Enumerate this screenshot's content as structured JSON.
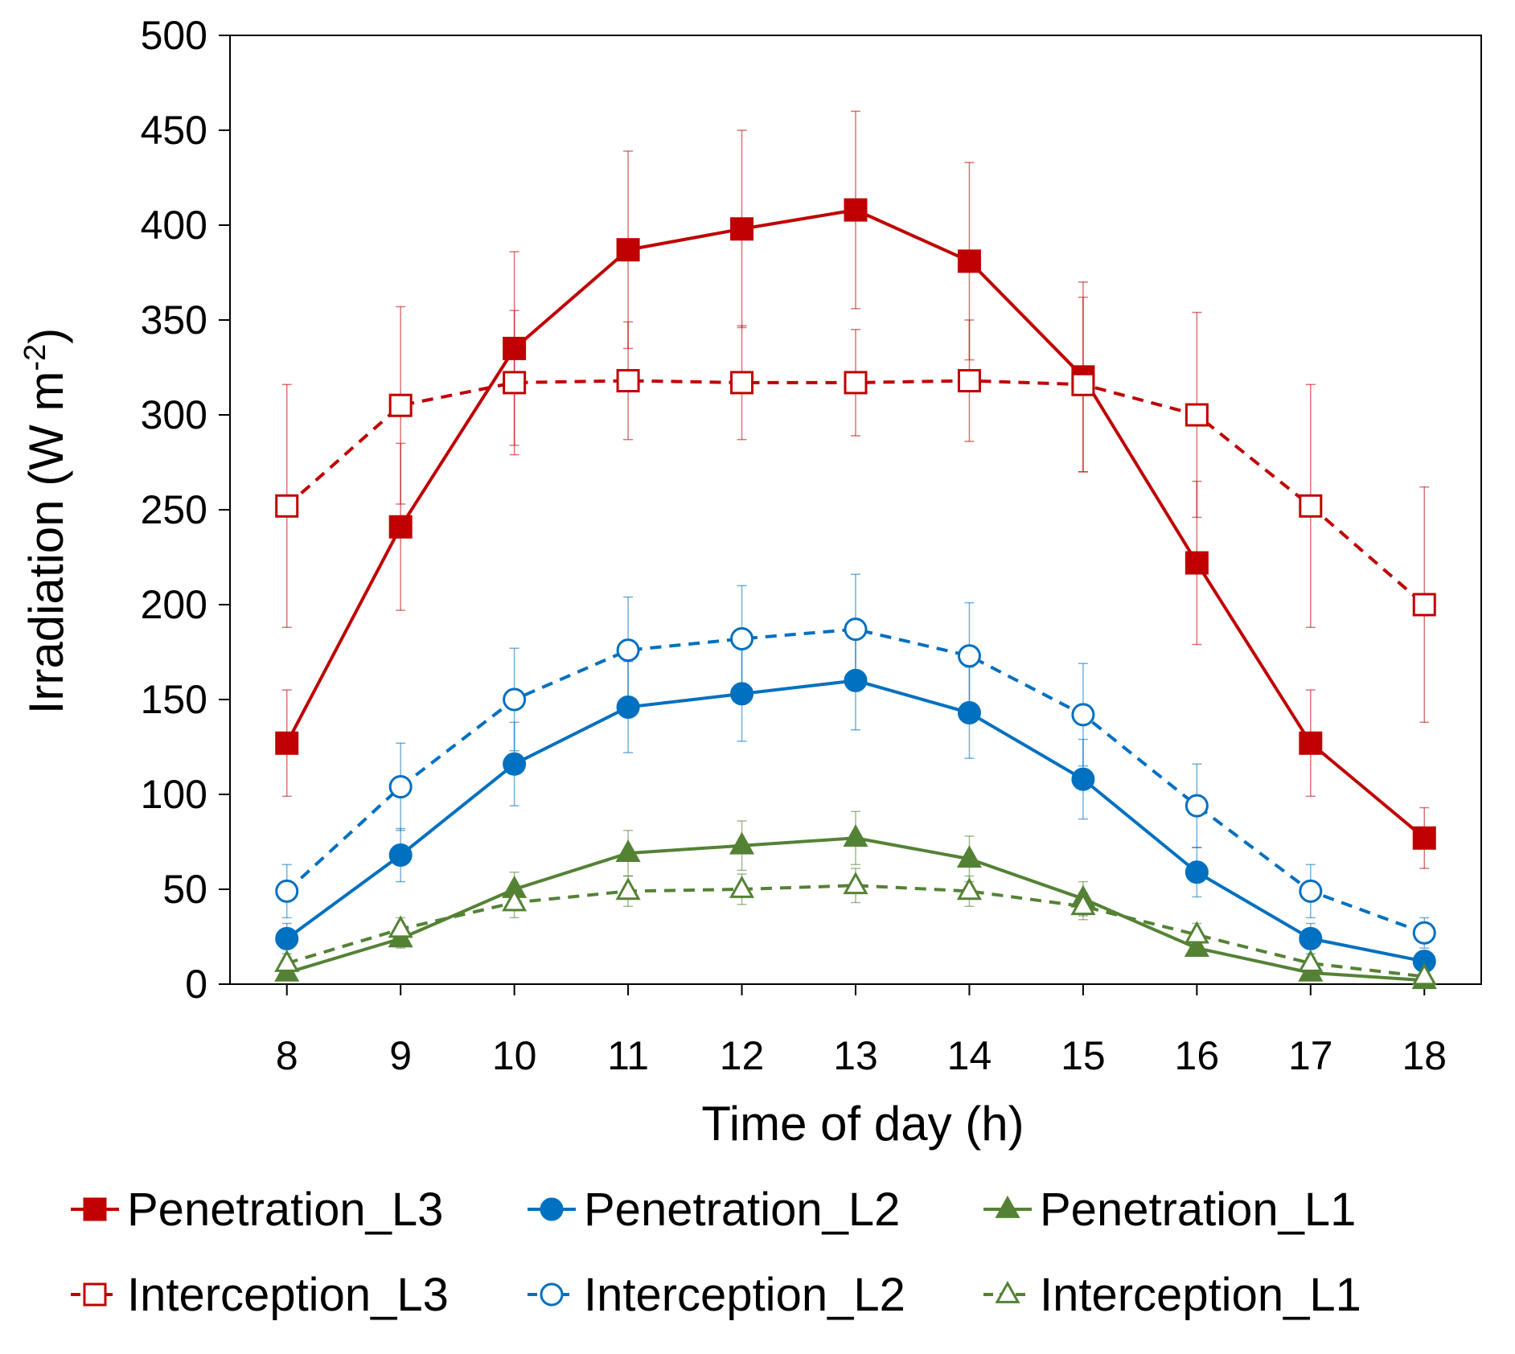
{
  "chart_data": {
    "type": "line",
    "title": "",
    "xlabel": "Time of day (h)",
    "ylabel_main": "Irradiation (W m",
    "ylabel_sup": "-2",
    "ylabel_close": ")",
    "x": [
      8,
      9,
      10,
      11,
      12,
      13,
      14,
      15,
      16,
      17,
      18
    ],
    "xlim": [
      7.5,
      18.5
    ],
    "ylim": [
      0,
      500
    ],
    "yticks": [
      0,
      50,
      100,
      150,
      200,
      250,
      300,
      350,
      400,
      450,
      500
    ],
    "grid": false,
    "legend_position": "bottom",
    "series": [
      {
        "name": "Penetration_L3",
        "color": "#c00000",
        "marker": "square",
        "filled": true,
        "dashed": false,
        "values": [
          127,
          241,
          335,
          387,
          398,
          408,
          381,
          320,
          222,
          127,
          77
        ],
        "errors": [
          28,
          44,
          51,
          52,
          52,
          52,
          52,
          50,
          43,
          28,
          16
        ]
      },
      {
        "name": "Penetration_L2",
        "color": "#0070c0",
        "marker": "circle",
        "filled": true,
        "dashed": false,
        "values": [
          24,
          68,
          116,
          146,
          153,
          160,
          143,
          108,
          59,
          24,
          12
        ],
        "errors": [
          8,
          14,
          22,
          24,
          25,
          26,
          24,
          21,
          13,
          8,
          4
        ]
      },
      {
        "name": "Penetration_L1",
        "color": "#548235",
        "marker": "triangle",
        "filled": true,
        "dashed": false,
        "values": [
          6,
          24,
          50,
          69,
          73,
          77,
          66,
          45,
          19,
          6,
          2
        ],
        "errors": [
          2,
          5,
          9,
          12,
          13,
          14,
          12,
          9,
          4,
          2,
          1
        ]
      },
      {
        "name": "Interception_L3",
        "color": "#c00000",
        "marker": "square",
        "filled": false,
        "dashed": true,
        "values": [
          252,
          305,
          317,
          318,
          317,
          317,
          318,
          316,
          300,
          252,
          200
        ],
        "errors": [
          64,
          52,
          38,
          31,
          30,
          28,
          32,
          46,
          54,
          64,
          62
        ]
      },
      {
        "name": "Interception_L2",
        "color": "#0070c0",
        "marker": "circle",
        "filled": false,
        "dashed": true,
        "values": [
          49,
          104,
          150,
          176,
          182,
          187,
          173,
          142,
          94,
          49,
          27
        ],
        "errors": [
          14,
          23,
          27,
          28,
          28,
          29,
          28,
          27,
          22,
          14,
          8
        ]
      },
      {
        "name": "Interception_L1",
        "color": "#548235",
        "marker": "triangle",
        "filled": false,
        "dashed": true,
        "values": [
          11,
          29,
          43,
          49,
          50,
          52,
          49,
          41,
          26,
          11,
          4
        ],
        "errors": [
          3,
          6,
          8,
          8,
          8,
          9,
          8,
          7,
          6,
          3,
          1
        ]
      }
    ]
  }
}
